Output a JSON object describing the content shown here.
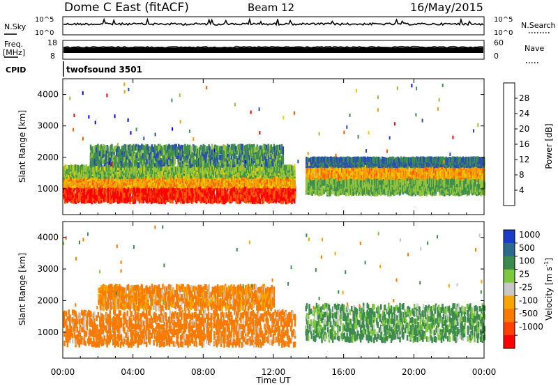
{
  "header": {
    "title": "Dome C East (fitACF)",
    "beam": "Beam 12",
    "date": "16/May/2015"
  },
  "top_panels": {
    "nsky": {
      "label": "N.Sky",
      "ticks": [
        "10^5",
        "10^0"
      ]
    },
    "nsearch": {
      "label": "N.Search",
      "ticks": [
        "10^5",
        "10^0"
      ]
    },
    "freq": {
      "label_line1": "Freq.",
      "label_line2": "[MHz]",
      "ticks": [
        "18",
        "8"
      ]
    },
    "nave": {
      "label": "Nave",
      "ticks": [
        "60",
        "0"
      ]
    },
    "cpid": {
      "label": "CPID",
      "value": "twofsound 3501"
    }
  },
  "chart_data": [
    {
      "type": "heatmap",
      "name": "Power",
      "xlabel": "Time UT",
      "ylabel": "Slant Range [km]",
      "xticks": [
        "00:00",
        "04:00",
        "08:00",
        "12:00",
        "16:00",
        "20:00",
        "00:00"
      ],
      "xlim_hours": [
        0,
        24
      ],
      "ylim_km": [
        180,
        4500
      ],
      "yticks": [
        1000,
        2000,
        3000,
        4000
      ],
      "colorbar": {
        "label": "Power [dB]",
        "ticks": [
          "28",
          "24",
          "20",
          "16",
          "12",
          "8",
          "4"
        ],
        "range": [
          0,
          32
        ],
        "colors": [
          "#0000ff",
          "#2a4db3",
          "#3f8f4f",
          "#93c53a",
          "#e8d000",
          "#f6a000",
          "#ff5a00",
          "#ff0000"
        ]
      },
      "regions": [
        {
          "t": [
            0.0,
            13.2
          ],
          "r": [
            550,
            1050
          ],
          "level": 29
        },
        {
          "t": [
            0.0,
            13.2
          ],
          "r": [
            1050,
            1350
          ],
          "level": 22
        },
        {
          "t": [
            0.0,
            13.2
          ],
          "r": [
            1350,
            1650
          ],
          "level": 13
        },
        {
          "t": [
            1.5,
            12.5
          ],
          "r": [
            1700,
            2300
          ],
          "level": 10
        },
        {
          "t": [
            13.8,
            24.0
          ],
          "r": [
            1200,
            1700
          ],
          "level": 22
        },
        {
          "t": [
            13.8,
            24.0
          ],
          "r": [
            800,
            1200
          ],
          "level": 12
        },
        {
          "t": [
            13.8,
            24.0
          ],
          "r": [
            1700,
            1900
          ],
          "level": 8
        }
      ]
    },
    {
      "type": "heatmap",
      "name": "Velocity",
      "xlabel": "Time UT",
      "ylabel": "Slant Range [km]",
      "xticks": [
        "00:00",
        "04:00",
        "08:00",
        "12:00",
        "16:00",
        "20:00",
        "00:00"
      ],
      "xlim_hours": [
        0,
        24
      ],
      "ylim_km": [
        180,
        4500
      ],
      "yticks": [
        1000,
        2000,
        3000,
        4000
      ],
      "colorbar": {
        "label": "Velocity [m s-1]",
        "label_main": "Velocity",
        "label_unit": "[m s",
        "label_exp": "-1",
        "label_close": "]",
        "ticks": [
          "1000",
          "500",
          "100",
          "25",
          "-25",
          "-100",
          "-500",
          "-1000"
        ],
        "colors": [
          "#1a3cc8",
          "#2e6a8e",
          "#3d8a4e",
          "#7cc93e",
          "#c8c8c8",
          "#f7a600",
          "#f87a00",
          "#ff4000",
          "#ff0000"
        ]
      },
      "regions": [
        {
          "t": [
            0.0,
            13.2
          ],
          "r": [
            550,
            1600
          ],
          "level": -300
        },
        {
          "t": [
            2.0,
            12.0
          ],
          "r": [
            1700,
            2400
          ],
          "level": -150
        },
        {
          "t": [
            13.8,
            24.0
          ],
          "r": [
            700,
            1800
          ],
          "level": 150
        }
      ]
    }
  ]
}
